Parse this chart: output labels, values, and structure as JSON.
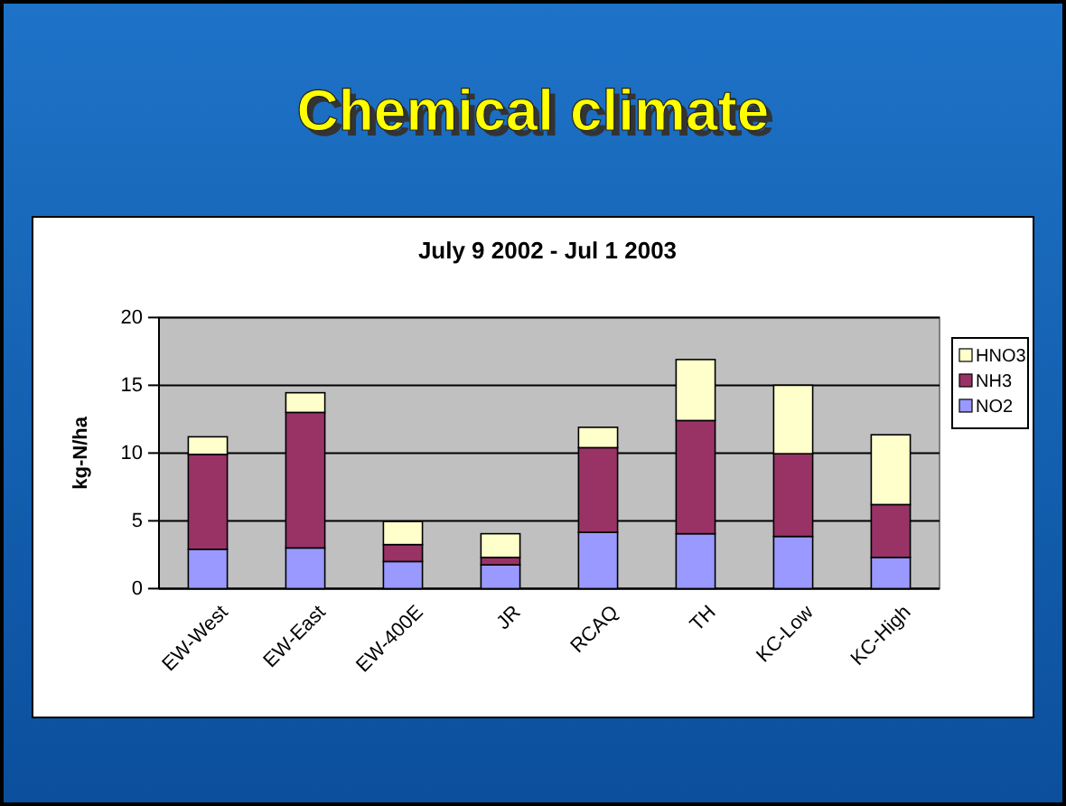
{
  "chart_data": {
    "type": "bar",
    "title": "Chemical climate",
    "subtitle": "July 9 2002 - Jul 1 2003",
    "ylabel": "kg-N/ha",
    "categories": [
      "EW-West",
      "EW-East",
      "EW-400E",
      "JR",
      "RCAQ",
      "TH",
      "KC-Low",
      "KC-High"
    ],
    "series": [
      {
        "name": "NO2",
        "color": "#9999ff",
        "values": [
          2.9,
          3.0,
          2.0,
          1.75,
          4.15,
          4.05,
          3.85,
          2.3
        ]
      },
      {
        "name": "NH3",
        "color": "#993366",
        "values": [
          7.0,
          10.0,
          1.25,
          0.55,
          6.25,
          8.35,
          6.1,
          3.9
        ]
      },
      {
        "name": "HNO3",
        "color": "#ffffcc",
        "values": [
          1.3,
          1.45,
          1.7,
          1.75,
          1.5,
          4.5,
          5.05,
          5.15
        ]
      }
    ],
    "stacked": true,
    "ylim": [
      0,
      20
    ],
    "yticks": [
      0,
      5,
      10,
      15,
      20
    ],
    "grid": "y",
    "legend": "right"
  }
}
